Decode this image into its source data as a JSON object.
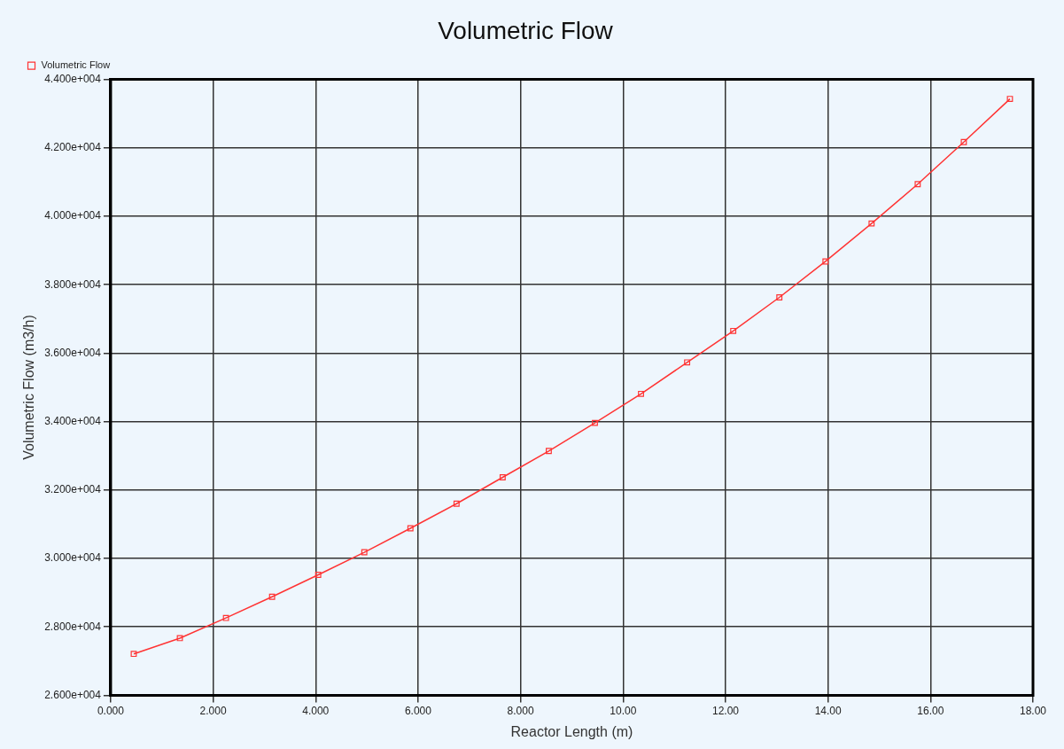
{
  "chart_data": {
    "type": "line",
    "title": "Volumetric Flow",
    "xlabel": "Reactor Length (m)",
    "ylabel": "Volumetric Flow (m3/h)",
    "x": [
      0.45,
      1.35,
      2.25,
      3.15,
      4.05,
      4.95,
      5.85,
      6.75,
      7.65,
      8.55,
      9.45,
      10.35,
      11.25,
      12.15,
      13.05,
      13.95,
      14.85,
      15.75,
      16.65,
      17.55
    ],
    "series": [
      {
        "name": "Volumetric Flow",
        "color": "#ff3333",
        "values": [
          27210,
          27670,
          28260,
          28880,
          29520,
          30180,
          30880,
          31600,
          32370,
          33140,
          33960,
          34810,
          35730,
          36650,
          37630,
          38680,
          39790,
          40940,
          42170,
          43430
        ]
      }
    ],
    "xlim": [
      0,
      18
    ],
    "xticks": [
      {
        "value": 0,
        "label": "0.000"
      },
      {
        "value": 2,
        "label": "2.000"
      },
      {
        "value": 4,
        "label": "4.000"
      },
      {
        "value": 6,
        "label": "6.000"
      },
      {
        "value": 8,
        "label": "8.000"
      },
      {
        "value": 10,
        "label": "10.00"
      },
      {
        "value": 12,
        "label": "12.00"
      },
      {
        "value": 14,
        "label": "14.00"
      },
      {
        "value": 16,
        "label": "16.00"
      },
      {
        "value": 18,
        "label": "18.00"
      }
    ],
    "ylim": [
      26000,
      44000
    ],
    "yticks": [
      {
        "value": 26000,
        "label": "2.600e+004"
      },
      {
        "value": 28000,
        "label": "2.800e+004"
      },
      {
        "value": 30000,
        "label": "3.000e+004"
      },
      {
        "value": 32000,
        "label": "3.200e+004"
      },
      {
        "value": 34000,
        "label": "3.400e+004"
      },
      {
        "value": 36000,
        "label": "3.600e+004"
      },
      {
        "value": 38000,
        "label": "3.800e+004"
      },
      {
        "value": 40000,
        "label": "4.000e+004"
      },
      {
        "value": 42000,
        "label": "4.200e+004"
      },
      {
        "value": 44000,
        "label": "4.400e+004"
      }
    ],
    "grid": true,
    "legend": "top left",
    "marker": "square",
    "line_style": "solid"
  }
}
